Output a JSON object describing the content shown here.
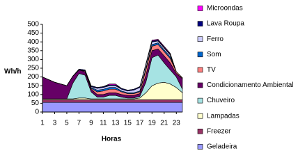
{
  "chart_data": {
    "type": "stacked_area",
    "x_label": "Horas",
    "y_label": "Wh/h",
    "x": [
      1,
      2,
      3,
      4,
      5,
      6,
      7,
      8,
      9,
      10,
      11,
      12,
      13,
      14,
      15,
      16,
      17,
      18,
      19,
      20,
      21,
      22,
      23,
      24
    ],
    "xlim": [
      1,
      24
    ],
    "xticks": [
      1,
      3,
      5,
      7,
      9,
      11,
      13,
      15,
      17,
      19,
      21,
      23
    ],
    "ylim": [
      0,
      500
    ],
    "yticks": [
      0,
      50,
      100,
      150,
      200,
      250,
      300,
      350,
      400,
      450,
      500
    ],
    "series": [
      {
        "name": "Geladeira",
        "color": "#9999ff",
        "values": [
          55,
          55,
          55,
          55,
          55,
          55,
          55,
          55,
          55,
          55,
          55,
          55,
          55,
          55,
          55,
          55,
          55,
          55,
          55,
          55,
          55,
          55,
          55,
          55
        ]
      },
      {
        "name": "Freezer",
        "color": "#993366",
        "values": [
          15,
          15,
          15,
          15,
          15,
          15,
          15,
          15,
          15,
          15,
          15,
          15,
          15,
          15,
          15,
          15,
          15,
          15,
          15,
          15,
          15,
          15,
          15,
          15
        ]
      },
      {
        "name": "Lampadas",
        "color": "#ffffcc",
        "values": [
          5,
          5,
          5,
          5,
          5,
          5,
          10,
          10,
          5,
          5,
          5,
          5,
          5,
          5,
          5,
          5,
          10,
          40,
          80,
          95,
          100,
          90,
          70,
          40
        ]
      },
      {
        "name": "Chuveiro",
        "color": "#a6e3e3",
        "values": [
          0,
          0,
          0,
          0,
          0,
          90,
          140,
          130,
          40,
          10,
          10,
          20,
          20,
          10,
          5,
          5,
          10,
          60,
          160,
          160,
          110,
          80,
          60,
          20
        ]
      },
      {
        "name": "Condicionamento Ambiental",
        "color": "#660066",
        "values": [
          125,
          110,
          95,
          85,
          75,
          40,
          20,
          20,
          15,
          15,
          15,
          15,
          15,
          15,
          15,
          15,
          15,
          40,
          40,
          35,
          40,
          40,
          20,
          60
        ]
      },
      {
        "name": "TV",
        "color": "#ff8080",
        "values": [
          0,
          0,
          0,
          0,
          0,
          0,
          0,
          5,
          5,
          15,
          20,
          20,
          20,
          15,
          10,
          10,
          10,
          30,
          25,
          25,
          25,
          25,
          10,
          5
        ]
      },
      {
        "name": "Som",
        "color": "#0066cc",
        "values": [
          0,
          0,
          0,
          0,
          0,
          0,
          0,
          0,
          5,
          10,
          10,
          10,
          10,
          5,
          5,
          5,
          5,
          10,
          10,
          10,
          10,
          10,
          0,
          0
        ]
      },
      {
        "name": "Ferro",
        "color": "#ccccff",
        "values": [
          0,
          0,
          0,
          0,
          0,
          0,
          0,
          0,
          5,
          10,
          10,
          10,
          10,
          10,
          10,
          15,
          20,
          20,
          15,
          10,
          10,
          10,
          0,
          0
        ]
      },
      {
        "name": "Lava Roupa",
        "color": "#000080",
        "values": [
          0,
          0,
          0,
          0,
          0,
          0,
          5,
          5,
          5,
          5,
          5,
          5,
          5,
          5,
          5,
          5,
          5,
          5,
          5,
          5,
          5,
          5,
          0,
          0
        ]
      },
      {
        "name": "Microondas",
        "color": "#ff00ff",
        "values": [
          0,
          0,
          0,
          0,
          0,
          0,
          0,
          0,
          0,
          0,
          0,
          5,
          5,
          0,
          0,
          0,
          0,
          0,
          5,
          5,
          5,
          5,
          0,
          0
        ]
      }
    ]
  }
}
